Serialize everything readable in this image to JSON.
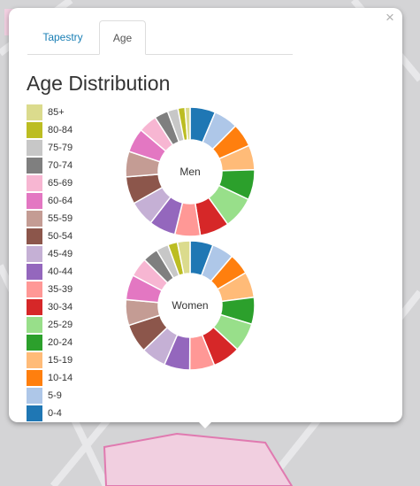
{
  "tabs": [
    {
      "label": "Tapestry",
      "active": false
    },
    {
      "label": "Age",
      "active": true
    }
  ],
  "close_label": "×",
  "title": "Age Distribution",
  "age_groups": [
    {
      "label": "85+",
      "color": "#dbdb8d"
    },
    {
      "label": "80-84",
      "color": "#bcbd22"
    },
    {
      "label": "75-79",
      "color": "#c7c7c7"
    },
    {
      "label": "70-74",
      "color": "#7f7f7f"
    },
    {
      "label": "65-69",
      "color": "#f7b6d2"
    },
    {
      "label": "60-64",
      "color": "#e377c2"
    },
    {
      "label": "55-59",
      "color": "#c49c94"
    },
    {
      "label": "50-54",
      "color": "#8c564b"
    },
    {
      "label": "45-49",
      "color": "#c5b0d5"
    },
    {
      "label": "40-44",
      "color": "#9467bd"
    },
    {
      "label": "35-39",
      "color": "#ff9896"
    },
    {
      "label": "30-34",
      "color": "#d62728"
    },
    {
      "label": "25-29",
      "color": "#98df8a"
    },
    {
      "label": "20-24",
      "color": "#2ca02c"
    },
    {
      "label": "15-19",
      "color": "#ffbb78"
    },
    {
      "label": "10-14",
      "color": "#ff7f0e"
    },
    {
      "label": "5-9",
      "color": "#aec7e8"
    },
    {
      "label": "0-4",
      "color": "#1f77b4"
    }
  ],
  "chart_data": [
    {
      "type": "pie",
      "style": "donut",
      "center_label": "Men",
      "categories": [
        "0-4",
        "5-9",
        "10-14",
        "15-19",
        "20-24",
        "25-29",
        "30-34",
        "35-39",
        "40-44",
        "45-49",
        "50-54",
        "55-59",
        "60-64",
        "65-69",
        "70-74",
        "75-79",
        "80-84",
        "85+"
      ],
      "values": [
        6.5,
        6.2,
        6.0,
        6.3,
        7.7,
        8.2,
        7.5,
        6.5,
        6.8,
        6.5,
        7.0,
        6.5,
        6.2,
        4.8,
        3.5,
        2.7,
        1.8,
        1.3
      ]
    },
    {
      "type": "pie",
      "style": "donut",
      "center_label": "Women",
      "categories": [
        "0-4",
        "5-9",
        "10-14",
        "15-19",
        "20-24",
        "25-29",
        "30-34",
        "35-39",
        "40-44",
        "45-49",
        "50-54",
        "55-59",
        "60-64",
        "65-69",
        "70-74",
        "75-79",
        "80-84",
        "85+"
      ],
      "values": [
        6.0,
        5.7,
        5.5,
        6.7,
        7.0,
        7.5,
        7.2,
        6.5,
        6.7,
        6.5,
        7.5,
        6.7,
        6.5,
        5.0,
        4.0,
        3.2,
        2.5,
        3.3
      ]
    }
  ]
}
